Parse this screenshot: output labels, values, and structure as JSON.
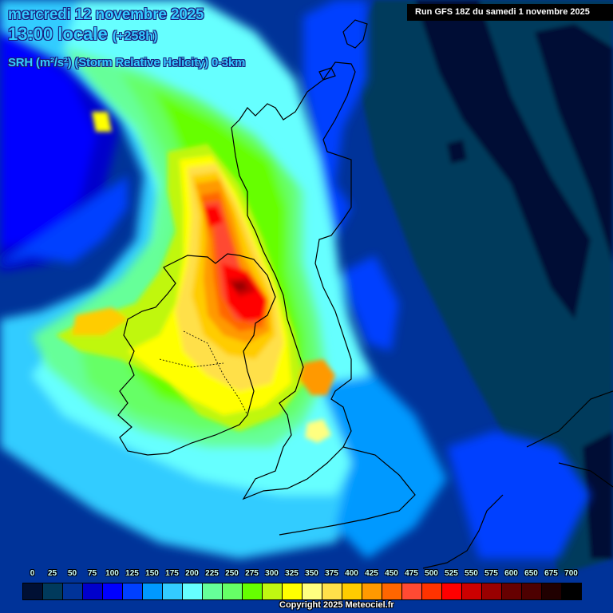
{
  "header": {
    "date_line": "mercredi 12 novembre 2025",
    "time_main": "13:00 locale",
    "time_lead": "(+258h)",
    "parameter": "SRH (m²/s²) (Storm Relative Helicity) 0-3km"
  },
  "run_info": "Run GFS 18Z du samedi 1 novembre 2025",
  "copyright": "Copyright 2025 Meteociel.fr",
  "legend": {
    "unit": "m²/s²",
    "labels": [
      "0",
      "25",
      "50",
      "75",
      "100",
      "125",
      "150",
      "175",
      "200",
      "225",
      "250",
      "275",
      "300",
      "325",
      "350",
      "375",
      "400",
      "425",
      "450",
      "475",
      "500",
      "525",
      "550",
      "575",
      "600",
      "650",
      "675",
      "700"
    ],
    "colors": [
      "#001034",
      "#003a5c",
      "#003399",
      "#0000cc",
      "#0000ff",
      "#0040ff",
      "#0099ff",
      "#33ccff",
      "#66ffff",
      "#66ff99",
      "#66ff66",
      "#66ff00",
      "#c0f711",
      "#ffff00",
      "#ffff80",
      "#ffe04a",
      "#ffcc00",
      "#ff9900",
      "#ff6600",
      "#ff4a33",
      "#ff3300",
      "#ff0000",
      "#cc0000",
      "#990000",
      "#660000",
      "#4d0000",
      "#200000",
      "#000000"
    ]
  },
  "map": {
    "region": "British Isles / North Sea",
    "max_zone": "Northern Ireland / North Channel",
    "max_value_approx": "≈550 m²/s²"
  }
}
